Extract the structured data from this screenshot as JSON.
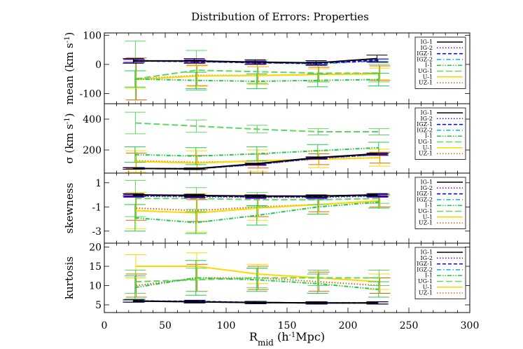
{
  "chart_data": {
    "type": "line",
    "title": "Distribution of Errors: Properties",
    "xlabel": "R_mid (h^-1Mpc)",
    "xlabel_main": "R",
    "xlabel_sub": "mid",
    "xlabel_rest": " (h",
    "xlabel_sup": "-1",
    "xlabel_end": "Mpc)",
    "xlim": [
      0,
      300
    ],
    "xticks": [
      "0",
      "50",
      "100",
      "150",
      "200",
      "250",
      "300"
    ],
    "x": [
      25,
      75,
      125,
      175,
      225
    ],
    "legend_position": "right",
    "legend_labels": [
      "IG-1",
      "IG-2",
      "IGZ-1",
      "IGZ-2",
      "I-1",
      "UG-1",
      "U-1",
      "UZ-1"
    ],
    "panels": [
      {
        "ylabel": "mean (km s-1)",
        "ylabel_main": "mean (km s",
        "ylabel_sup": "-1",
        "ylabel_end": ")",
        "ylim": [
          -135,
          108
        ],
        "yticks": [
          "100",
          "0",
          "-100"
        ],
        "ytick_values": [
          100,
          0,
          -100
        ],
        "series": [
          {
            "name": "IG-1",
            "color": "#000000",
            "dash": "solid",
            "values": [
              12,
              12,
              8,
              5,
              20
            ],
            "err": [
              8,
              8,
              8,
              8,
              12
            ]
          },
          {
            "name": "IG-2",
            "color": "#8000c0",
            "dash": "dot",
            "values": [
              12,
              11,
              7,
              3,
              14
            ],
            "err": [
              5,
              5,
              5,
              5,
              5
            ]
          },
          {
            "name": "IGZ-1",
            "color": "#0000e0",
            "dash": "dash",
            "values": [
              12,
              10,
              6,
              4,
              14
            ],
            "err": [
              5,
              5,
              5,
              5,
              5
            ]
          },
          {
            "name": "IGZ-2",
            "color": "#00b4e6",
            "dash": "dashdot",
            "values": [
              13,
              10,
              6,
              2,
              12
            ],
            "err": [
              5,
              5,
              5,
              5,
              5
            ]
          },
          {
            "name": "I-1",
            "color": "#1ecb4d",
            "dash": "dashdotdot",
            "values": [
              -50,
              -55,
              -58,
              -55,
              -52
            ],
            "err": [
              28,
              28,
              25,
              22,
              22
            ]
          },
          {
            "name": "UG-1",
            "color": "#60d860",
            "dash": "longdash",
            "values": [
              -50,
              -20,
              -25,
              -30,
              -30
            ],
            "err": [
              130,
              68,
              40,
              30,
              30
            ]
          },
          {
            "name": "U-1",
            "color": "#ffd700",
            "dash": "solid",
            "values": [
              -52,
              -40,
              -38,
              -35,
              -33
            ],
            "err": [
              30,
              35,
              30,
              20,
              20
            ]
          },
          {
            "name": "UZ-1",
            "color": "#e06000",
            "dash": "dot",
            "values": [
              -50,
              -38,
              -38,
              -35,
              -30
            ],
            "err": [
              72,
              35,
              30,
              25,
              25
            ]
          }
        ]
      },
      {
        "ylabel": "σ (km s-1)",
        "ylabel_main": "σ (km s",
        "ylabel_sup": "-1",
        "ylabel_end": ")",
        "ylim": [
          50,
          500
        ],
        "yticks": [
          "400",
          "200"
        ],
        "ytick_values": [
          400,
          200
        ],
        "series": [
          {
            "name": "IG-1",
            "color": "#000000",
            "dash": "solid",
            "values": [
              80,
              78,
              110,
              150,
              175
            ],
            "err": [
              5,
              5,
              5,
              5,
              5
            ]
          },
          {
            "name": "IG-2",
            "color": "#8000c0",
            "dash": "dot",
            "values": [
              80,
              78,
              105,
              145,
              170
            ],
            "err": [
              5,
              5,
              5,
              5,
              5
            ]
          },
          {
            "name": "IGZ-1",
            "color": "#0000e0",
            "dash": "dash",
            "values": [
              80,
              78,
              108,
              148,
              172
            ],
            "err": [
              5,
              5,
              5,
              5,
              5
            ]
          },
          {
            "name": "IGZ-2",
            "color": "#00b4e6",
            "dash": "dashdot",
            "values": [
              80,
              78,
              106,
              146,
              170
            ],
            "err": [
              5,
              5,
              5,
              5,
              5
            ]
          },
          {
            "name": "I-1",
            "color": "#1ecb4d",
            "dash": "dashdotdot",
            "values": [
              170,
              160,
              175,
              195,
              215
            ],
            "err": [
              50,
              55,
              45,
              40,
              35
            ]
          },
          {
            "name": "UG-1",
            "color": "#60d860",
            "dash": "longdash",
            "values": [
              375,
              355,
              335,
              318,
              318
            ],
            "err": [
              70,
              40,
              25,
              20,
              20
            ]
          },
          {
            "name": "U-1",
            "color": "#ffd700",
            "dash": "solid",
            "values": [
              125,
              115,
              130,
              140,
              150
            ],
            "err": [
              70,
              80,
              70,
              55,
              55
            ]
          },
          {
            "name": "UZ-1",
            "color": "#e06000",
            "dash": "dot",
            "values": [
              130,
              120,
              128,
              140,
              150
            ],
            "err": [
              50,
              45,
              45,
              35,
              35
            ]
          }
        ]
      },
      {
        "ylabel": "skewness",
        "ylim": [
          -4,
          1.8
        ],
        "yticks": [
          "1",
          "-1",
          "-3"
        ],
        "ytick_values": [
          1,
          -1,
          -3
        ],
        "series": [
          {
            "name": "IG-1",
            "color": "#000000",
            "dash": "solid",
            "values": [
              0.0,
              -0.05,
              -0.1,
              -0.1,
              0.0
            ],
            "err": [
              0.1,
              0.1,
              0.1,
              0.1,
              0.1
            ]
          },
          {
            "name": "IG-2",
            "color": "#8000c0",
            "dash": "dot",
            "values": [
              -0.1,
              -0.15,
              -0.2,
              -0.2,
              -0.1
            ],
            "err": [
              0.1,
              0.1,
              0.1,
              0.1,
              0.1
            ]
          },
          {
            "name": "IGZ-1",
            "color": "#0000e0",
            "dash": "dash",
            "values": [
              -0.05,
              -0.1,
              -0.15,
              -0.15,
              -0.05
            ],
            "err": [
              0.1,
              0.1,
              0.1,
              0.1,
              0.1
            ]
          },
          {
            "name": "IGZ-2",
            "color": "#00b4e6",
            "dash": "dashdot",
            "values": [
              -0.05,
              -0.1,
              -0.15,
              -0.15,
              -0.05
            ],
            "err": [
              0.1,
              0.1,
              0.1,
              0.1,
              0.1
            ]
          },
          {
            "name": "I-1",
            "color": "#1ecb4d",
            "dash": "dashdotdot",
            "values": [
              -1.9,
              -2.3,
              -1.7,
              -1.0,
              -0.6
            ],
            "err": [
              1.1,
              0.9,
              0.8,
              0.6,
              0.5
            ]
          },
          {
            "name": "UG-1",
            "color": "#60d860",
            "dash": "longdash",
            "values": [
              -0.3,
              -0.3,
              -0.4,
              -0.4,
              -0.3
            ],
            "err": [
              1.5,
              0.9,
              0.6,
              0.4,
              0.4
            ]
          },
          {
            "name": "U-1",
            "color": "#ffd700",
            "dash": "solid",
            "values": [
              -1.3,
              -1.5,
              -1.1,
              -0.8,
              -0.5
            ],
            "err": [
              1.5,
              1.6,
              1.0,
              0.8,
              0.6
            ]
          },
          {
            "name": "UZ-1",
            "color": "#e06000",
            "dash": "dot",
            "values": [
              -1.1,
              -1.3,
              -1.0,
              -0.8,
              -0.5
            ],
            "err": [
              1.0,
              0.9,
              0.8,
              0.6,
              0.5
            ]
          }
        ]
      },
      {
        "ylabel": "kurtosis",
        "ylim": [
          3,
          21
        ],
        "yticks": [
          "20",
          "15",
          "10",
          "5"
        ],
        "ytick_values": [
          20,
          15,
          10,
          5
        ],
        "series": [
          {
            "name": "IG-1",
            "color": "#000000",
            "dash": "solid",
            "values": [
              6.0,
              5.8,
              5.6,
              5.5,
              5.5
            ],
            "err": [
              0.3,
              0.3,
              0.3,
              0.3,
              0.3
            ]
          },
          {
            "name": "IG-2",
            "color": "#8000c0",
            "dash": "dot",
            "values": [
              6.0,
              5.8,
              5.6,
              5.5,
              5.5
            ],
            "err": [
              0.3,
              0.3,
              0.3,
              0.3,
              0.3
            ]
          },
          {
            "name": "IGZ-1",
            "color": "#0000e0",
            "dash": "dash",
            "values": [
              6.0,
              5.9,
              5.6,
              5.5,
              5.5
            ],
            "err": [
              0.3,
              0.3,
              0.3,
              0.3,
              0.3
            ]
          },
          {
            "name": "IGZ-2",
            "color": "#00b4e6",
            "dash": "dashdot",
            "values": [
              6.0,
              5.8,
              5.6,
              5.5,
              5.5
            ],
            "err": [
              0.3,
              0.3,
              0.3,
              0.3,
              0.3
            ]
          },
          {
            "name": "I-1",
            "color": "#1ecb4d",
            "dash": "dashdotdot",
            "values": [
              9.5,
              12.0,
              11.5,
              10.5,
              9.0
            ],
            "err": [
              3.0,
              4.5,
              3.0,
              2.5,
              2.0
            ]
          },
          {
            "name": "UG-1",
            "color": "#60d860",
            "dash": "longdash",
            "values": [
              11.0,
              11.5,
              12.0,
              12.0,
              12.0
            ],
            "err": [
              3.0,
              3.0,
              2.5,
              2.0,
              2.0
            ]
          },
          {
            "name": "U-1",
            "color": "#ffd700",
            "dash": "solid",
            "values": [
              15.0,
              15.0,
              13.0,
              12.0,
              11.0
            ],
            "err": [
              3.0,
              3.5,
              2.5,
              2.0,
              2.0
            ]
          },
          {
            "name": "UZ-1",
            "color": "#e06000",
            "dash": "dot",
            "values": [
              10.0,
              12.0,
              12.0,
              11.0,
              10.0
            ],
            "err": [
              3.0,
              3.5,
              3.0,
              2.5,
              2.0
            ]
          }
        ]
      }
    ]
  }
}
